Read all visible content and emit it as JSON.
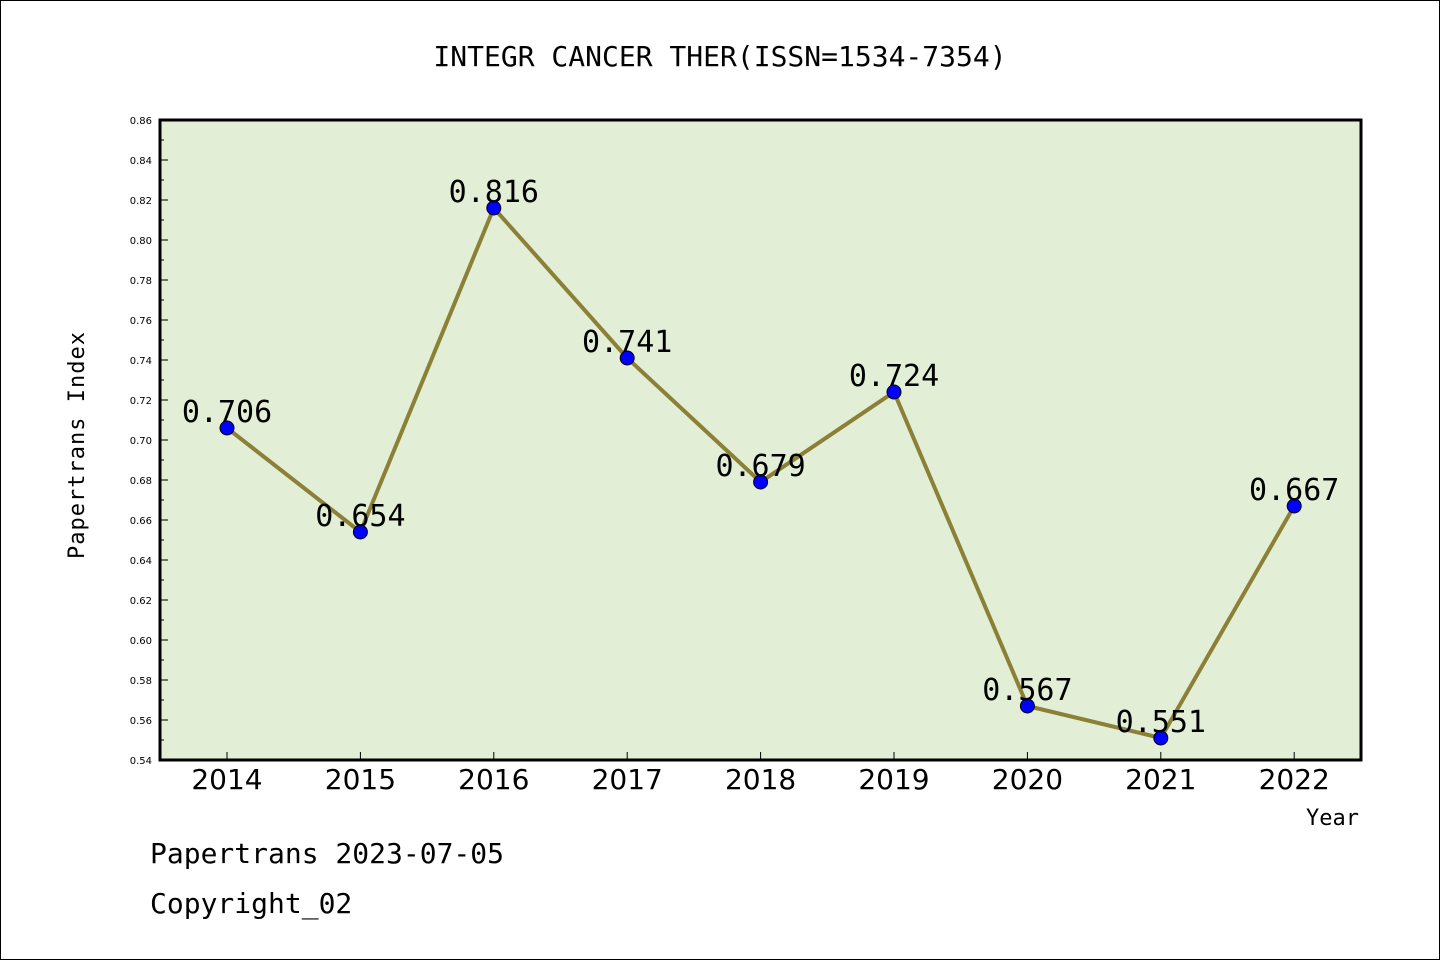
{
  "chart_data": {
    "type": "line",
    "title": "INTEGR CANCER THER(ISSN=1534-7354)",
    "xlabel": "Year",
    "ylabel": "Papertrans Index",
    "categories": [
      "2014",
      "2015",
      "2016",
      "2017",
      "2018",
      "2019",
      "2020",
      "2021",
      "2022"
    ],
    "values": [
      0.706,
      0.654,
      0.816,
      0.741,
      0.679,
      0.724,
      0.567,
      0.551,
      0.667
    ],
    "data_labels": [
      "0.706",
      "0.654",
      "0.816",
      "0.741",
      "0.679",
      "0.724",
      "0.567",
      "0.551",
      "0.667"
    ],
    "ylim": [
      0.54,
      0.86
    ],
    "yticks": [
      "0.54",
      "0.56",
      "0.58",
      "0.60",
      "0.62",
      "0.64",
      "0.66",
      "0.68",
      "0.70",
      "0.72",
      "0.74",
      "0.76",
      "0.78",
      "0.80",
      "0.82",
      "0.84",
      "0.86"
    ],
    "grid": false,
    "colors": {
      "plot_background": "#e2efd6",
      "line": "#8c7f36",
      "marker": "#0000ff"
    }
  },
  "footer": {
    "line1": "Papertrans 2023-07-05",
    "line2": "Copyright_02"
  }
}
